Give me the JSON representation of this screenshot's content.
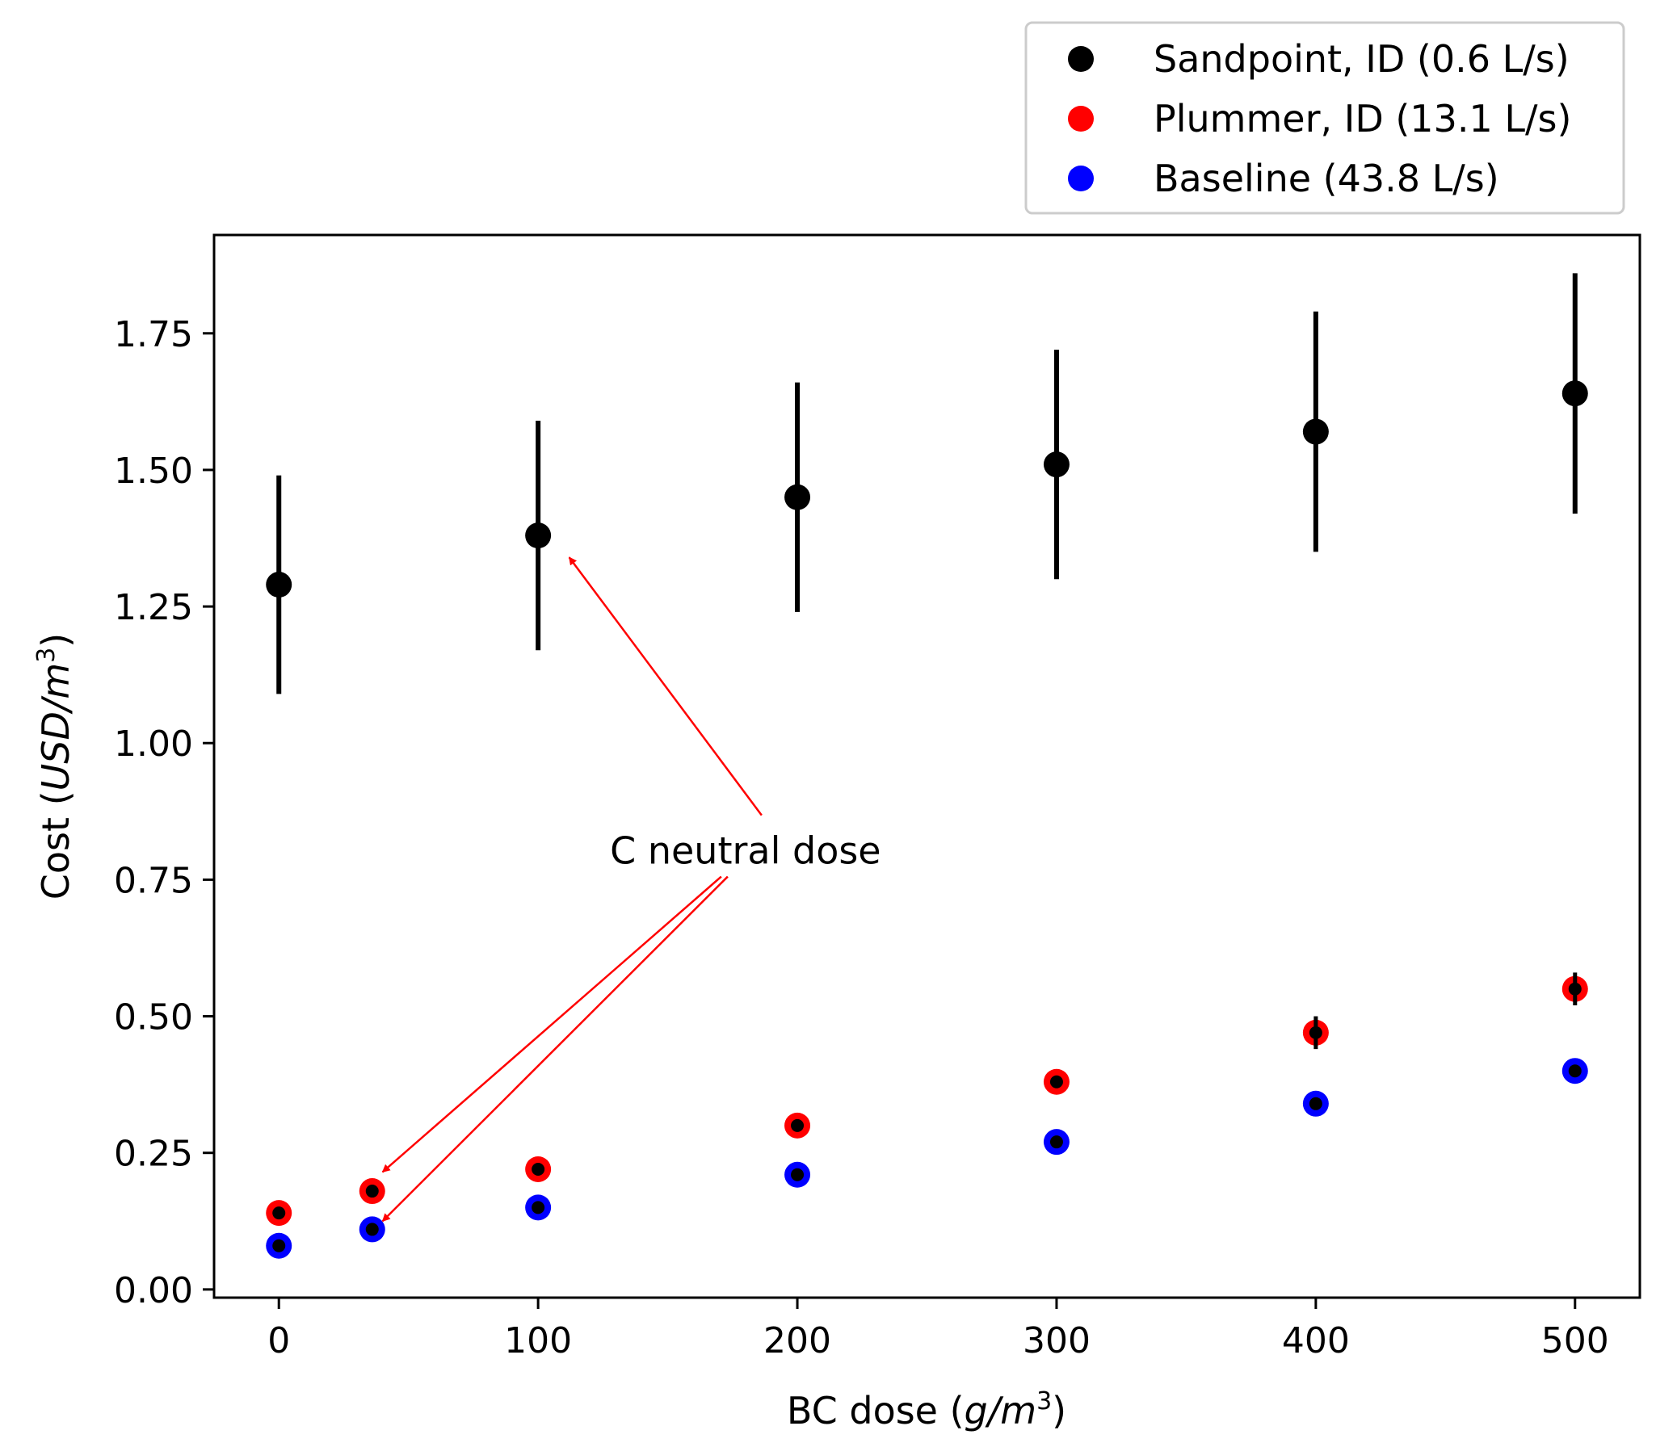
{
  "chart_data": {
    "type": "scatter",
    "title": "",
    "xlabel": {
      "prefix": "BC dose (",
      "var": "g/m",
      "sup": "3",
      "suffix": ")"
    },
    "ylabel": {
      "prefix": "Cost (",
      "var": "USD/m",
      "sup": "3",
      "suffix": ")"
    },
    "xlim": [
      -25,
      525
    ],
    "ylim": [
      -0.015,
      1.93
    ],
    "x_ticks": [
      0,
      100,
      200,
      300,
      400,
      500
    ],
    "x_tick_labels": [
      "0",
      "100",
      "200",
      "300",
      "400",
      "500"
    ],
    "y_ticks": [
      0.0,
      0.25,
      0.5,
      0.75,
      1.0,
      1.25,
      1.5,
      1.75
    ],
    "y_tick_labels": [
      "0.00",
      "0.25",
      "0.50",
      "0.75",
      "1.00",
      "1.25",
      "1.50",
      "1.75"
    ],
    "grid": false,
    "legend_position": "top-right, outside above plot",
    "series": [
      {
        "name": "Sandpoint, ID (0.6 L/s)",
        "color": "#000000",
        "points": [
          {
            "x": 0,
            "y": 1.29,
            "lo": 1.09,
            "hi": 1.49
          },
          {
            "x": 100,
            "y": 1.38,
            "lo": 1.17,
            "hi": 1.59
          },
          {
            "x": 200,
            "y": 1.45,
            "lo": 1.24,
            "hi": 1.66
          },
          {
            "x": 300,
            "y": 1.51,
            "lo": 1.3,
            "hi": 1.72
          },
          {
            "x": 400,
            "y": 1.57,
            "lo": 1.35,
            "hi": 1.79
          },
          {
            "x": 500,
            "y": 1.64,
            "lo": 1.42,
            "hi": 1.86
          }
        ]
      },
      {
        "name": "Plummer, ID (13.1 L/s)",
        "color": "#ff0000",
        "points": [
          {
            "x": 0,
            "y": 0.14,
            "lo": 0.13,
            "hi": 0.15
          },
          {
            "x": 36,
            "y": 0.18,
            "lo": 0.17,
            "hi": 0.19
          },
          {
            "x": 100,
            "y": 0.22,
            "lo": 0.21,
            "hi": 0.23
          },
          {
            "x": 200,
            "y": 0.3,
            "lo": 0.29,
            "hi": 0.31
          },
          {
            "x": 300,
            "y": 0.38,
            "lo": 0.37,
            "hi": 0.39
          },
          {
            "x": 400,
            "y": 0.47,
            "lo": 0.44,
            "hi": 0.5
          },
          {
            "x": 500,
            "y": 0.55,
            "lo": 0.52,
            "hi": 0.58
          }
        ]
      },
      {
        "name": "Baseline (43.8 L/s)",
        "color": "#0000ff",
        "points": [
          {
            "x": 0,
            "y": 0.08,
            "lo": 0.075,
            "hi": 0.085
          },
          {
            "x": 36,
            "y": 0.11,
            "lo": 0.105,
            "hi": 0.115
          },
          {
            "x": 100,
            "y": 0.15,
            "lo": 0.145,
            "hi": 0.155
          },
          {
            "x": 200,
            "y": 0.21,
            "lo": 0.205,
            "hi": 0.215
          },
          {
            "x": 300,
            "y": 0.27,
            "lo": 0.265,
            "hi": 0.275
          },
          {
            "x": 400,
            "y": 0.34,
            "lo": 0.335,
            "hi": 0.345
          },
          {
            "x": 500,
            "y": 0.4,
            "lo": 0.395,
            "hi": 0.405
          }
        ]
      }
    ],
    "annotation": {
      "text": "C neutral dose",
      "anchor": {
        "x": 180,
        "y": 0.8
      },
      "color": "#ff0000",
      "targets": [
        {
          "x": 112,
          "y": 1.34
        },
        {
          "x": 40,
          "y": 0.215
        },
        {
          "x": 40,
          "y": 0.125
        }
      ]
    }
  }
}
